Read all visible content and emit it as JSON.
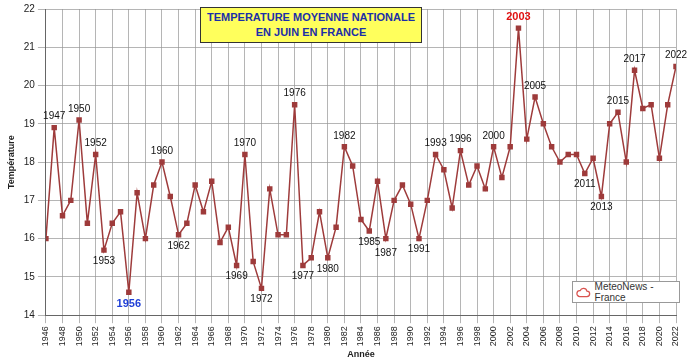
{
  "chart_data": {
    "type": "line",
    "title": [
      "TEMPERATURE MOYENNE NATIONALE",
      "EN JUIN EN FRANCE"
    ],
    "x_label": "Année",
    "y_label": "Température",
    "credit": "MeteoNews - France",
    "x": [
      1946,
      1947,
      1948,
      1949,
      1950,
      1951,
      1952,
      1953,
      1954,
      1955,
      1956,
      1957,
      1958,
      1959,
      1960,
      1961,
      1962,
      1963,
      1964,
      1965,
      1966,
      1967,
      1968,
      1969,
      1970,
      1971,
      1972,
      1973,
      1974,
      1975,
      1976,
      1977,
      1978,
      1979,
      1980,
      1981,
      1982,
      1983,
      1984,
      1985,
      1986,
      1987,
      1988,
      1989,
      1990,
      1991,
      1992,
      1993,
      1994,
      1995,
      1996,
      1997,
      1998,
      1999,
      2000,
      2001,
      2002,
      2003,
      2004,
      2005,
      2006,
      2007,
      2008,
      2009,
      2010,
      2011,
      2012,
      2013,
      2014,
      2015,
      2016,
      2017,
      2018,
      2019,
      2020,
      2021,
      2022
    ],
    "values": [
      16.0,
      18.9,
      16.6,
      17.0,
      19.1,
      16.4,
      18.2,
      15.7,
      16.4,
      16.7,
      14.6,
      17.2,
      16.0,
      17.4,
      18.0,
      17.1,
      16.1,
      16.4,
      17.4,
      16.7,
      17.5,
      15.9,
      16.3,
      15.3,
      18.2,
      15.4,
      14.7,
      17.3,
      16.1,
      16.1,
      19.5,
      15.3,
      15.5,
      16.7,
      15.5,
      16.3,
      18.4,
      17.9,
      16.5,
      16.2,
      17.5,
      16.0,
      17.0,
      17.4,
      16.9,
      16.0,
      17.0,
      18.2,
      17.8,
      16.8,
      18.3,
      17.4,
      17.9,
      17.3,
      18.4,
      17.6,
      18.4,
      21.5,
      18.6,
      19.7,
      19.0,
      18.4,
      18.0,
      18.2,
      18.2,
      17.7,
      18.1,
      17.1,
      19.0,
      19.3,
      18.0,
      20.4,
      19.4,
      19.5,
      18.1,
      19.5,
      20.5
    ],
    "color": "#9e3b3b",
    "marker": "square",
    "xlim": [
      1946,
      2022
    ],
    "xticks": [
      1946,
      1948,
      1950,
      1952,
      1954,
      1956,
      1958,
      1960,
      1962,
      1964,
      1966,
      1968,
      1970,
      1972,
      1974,
      1976,
      1978,
      1980,
      1982,
      1984,
      1986,
      1988,
      1990,
      1992,
      1994,
      1996,
      1998,
      2000,
      2002,
      2004,
      2006,
      2008,
      2010,
      2012,
      2014,
      2016,
      2018,
      2020,
      2022
    ],
    "ylim": [
      14,
      22
    ],
    "yticks": [
      14,
      15,
      16,
      17,
      18,
      19,
      20,
      21,
      22
    ],
    "grid": true,
    "annotations": [
      {
        "text": "1947",
        "x": 1947
      },
      {
        "text": "1950",
        "x": 1950
      },
      {
        "text": "1952",
        "x": 1952
      },
      {
        "text": "1953",
        "x": 1953
      },
      {
        "text": "1956",
        "x": 1956,
        "color": "#1f3fd6"
      },
      {
        "text": "1960",
        "x": 1960
      },
      {
        "text": "1962",
        "x": 1962
      },
      {
        "text": "1969",
        "x": 1969
      },
      {
        "text": "1970",
        "x": 1970
      },
      {
        "text": "1972",
        "x": 1972
      },
      {
        "text": "1976",
        "x": 1976
      },
      {
        "text": "1977",
        "x": 1977
      },
      {
        "text": "1980",
        "x": 1980
      },
      {
        "text": "1982",
        "x": 1982
      },
      {
        "text": "1985",
        "x": 1985
      },
      {
        "text": "1987",
        "x": 1987
      },
      {
        "text": "1991",
        "x": 1991
      },
      {
        "text": "1993",
        "x": 1993
      },
      {
        "text": "1996",
        "x": 1996
      },
      {
        "text": "2000",
        "x": 2000
      },
      {
        "text": "2003",
        "x": 2003,
        "color": "#e01010"
      },
      {
        "text": "2005",
        "x": 2005
      },
      {
        "text": "2011",
        "x": 2011
      },
      {
        "text": "2013",
        "x": 2013
      },
      {
        "text": "2015",
        "x": 2015
      },
      {
        "text": "2017",
        "x": 2017
      },
      {
        "text": "2022",
        "x": 2022
      }
    ]
  }
}
